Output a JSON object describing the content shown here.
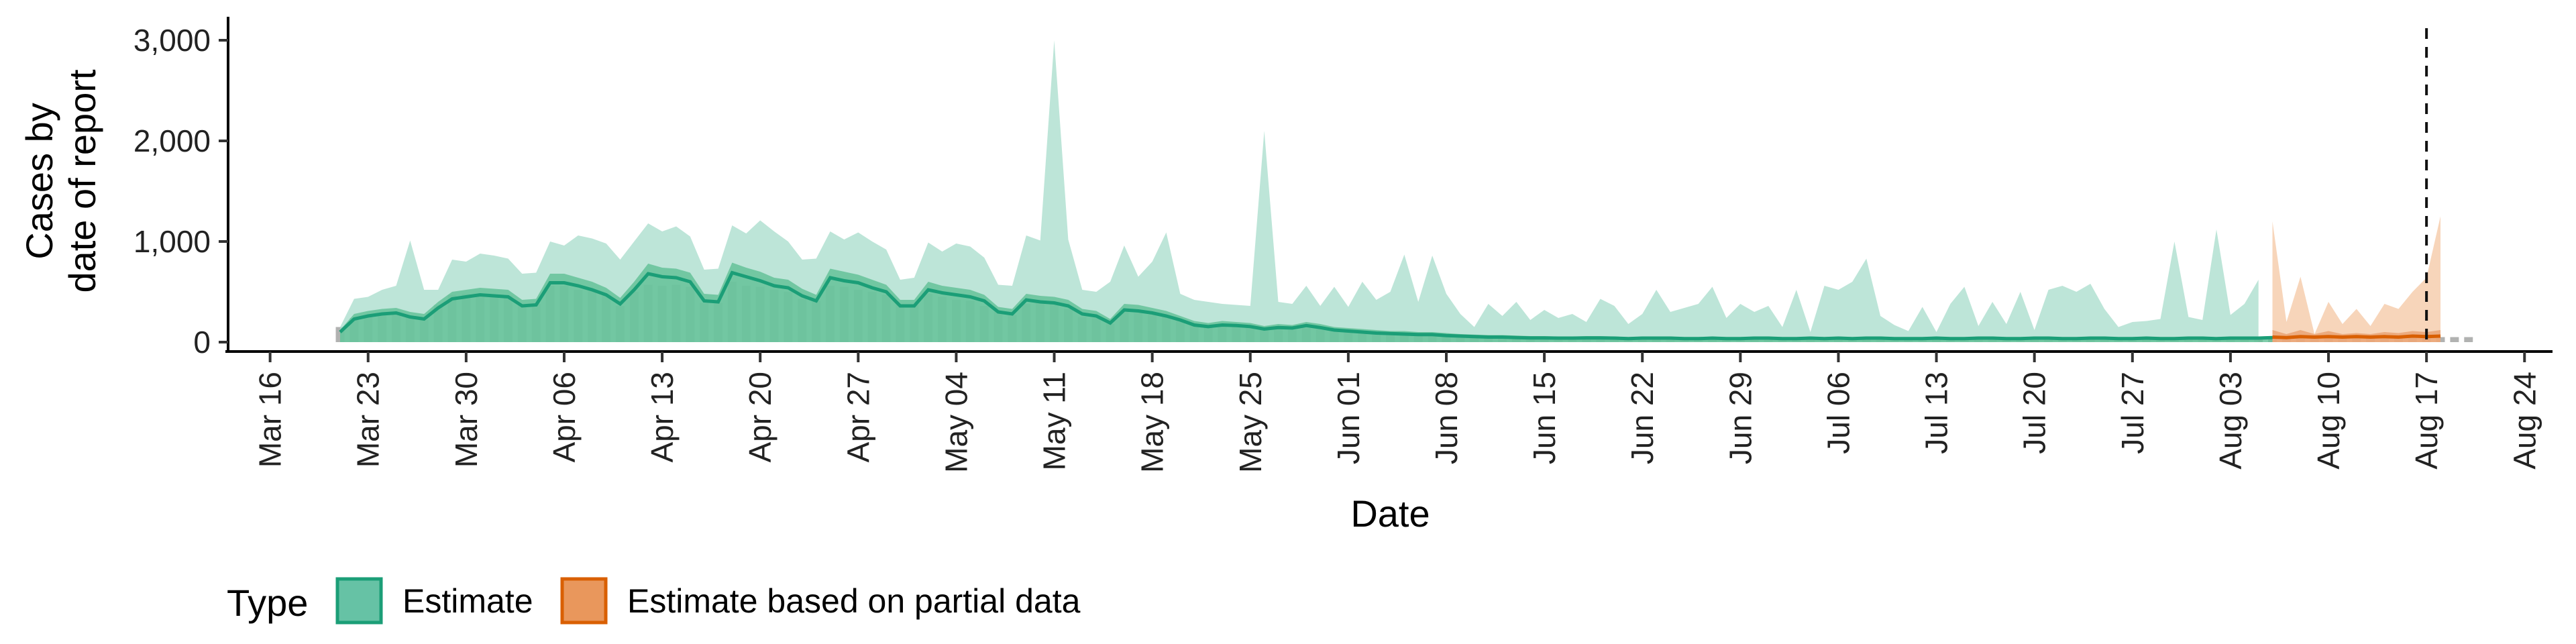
{
  "chart_data": {
    "type": "area",
    "xlabel": "Date",
    "ylabel": [
      "Cases by",
      "date of report"
    ],
    "ylim": [
      0,
      3200
    ],
    "yticks": [
      0,
      1000,
      2000,
      3000
    ],
    "ytick_labels": [
      "0",
      "1,000",
      "2,000",
      "3,000"
    ],
    "xlim": [
      "2020-03-13",
      "2020-08-26"
    ],
    "xticks": [
      "2020-03-16",
      "2020-03-23",
      "2020-03-30",
      "2020-04-06",
      "2020-04-13",
      "2020-04-20",
      "2020-04-27",
      "2020-05-04",
      "2020-05-11",
      "2020-05-18",
      "2020-05-25",
      "2020-06-01",
      "2020-06-08",
      "2020-06-15",
      "2020-06-22",
      "2020-06-29",
      "2020-07-06",
      "2020-07-13",
      "2020-07-20",
      "2020-07-27",
      "2020-08-03",
      "2020-08-10",
      "2020-08-17",
      "2020-08-24"
    ],
    "xtick_labels": [
      "Mar 16",
      "Mar 23",
      "Mar 30",
      "Apr 06",
      "Apr 13",
      "Apr 20",
      "Apr 27",
      "May 04",
      "May 11",
      "May 18",
      "May 25",
      "Jun 01",
      "Jun 08",
      "Jun 15",
      "Jun 22",
      "Jun 29",
      "Jul 06",
      "Jul 13",
      "Jul 20",
      "Jul 27",
      "Aug 03",
      "Aug 10",
      "Aug 17",
      "Aug 24"
    ],
    "vline_date": "2020-08-17",
    "grid": false,
    "legend": {
      "position": "bottom",
      "title": "Type",
      "entries": [
        {
          "label": "Estimate",
          "fill": "#66c2a5",
          "border": "#1b9e77"
        },
        {
          "label": "Estimate based on partial data",
          "fill": "#e9975c",
          "border": "#d95f02"
        }
      ]
    },
    "colors": {
      "estimate_outer": "#a7dccb",
      "estimate_inner": "#5fbf95",
      "estimate_line": "#1b9e77",
      "partial_outer": "#f4c7a3",
      "partial_inner": "#e9a070",
      "partial_line": "#d95f02",
      "bars": "#a8aaa8"
    },
    "series": [
      {
        "name": "Estimate",
        "start": "2020-03-21",
        "upper_90": [
          150,
          430,
          450,
          520,
          560,
          1010,
          520,
          520,
          820,
          800,
          880,
          860,
          830,
          680,
          690,
          1000,
          960,
          1060,
          1030,
          980,
          820,
          1000,
          1180,
          1100,
          1150,
          1050,
          720,
          730,
          1160,
          1080,
          1210,
          1100,
          1000,
          820,
          830,
          1100,
          1020,
          1090,
          1000,
          920,
          620,
          640,
          990,
          900,
          980,
          950,
          840,
          570,
          560,
          1060,
          1010,
          3000,
          1020,
          520,
          500,
          600,
          960,
          650,
          800,
          1090,
          480,
          420,
          400,
          380,
          370,
          360,
          2100,
          400,
          380,
          560,
          360,
          550,
          350,
          600,
          420,
          500,
          870,
          400,
          860,
          480,
          280,
          150,
          380,
          260,
          400,
          220,
          320,
          240,
          280,
          200,
          430,
          360,
          180,
          280,
          520,
          300,
          340,
          380,
          550,
          240,
          380,
          300,
          360,
          150,
          520,
          100,
          560,
          520,
          600,
          830,
          260,
          170,
          110,
          350,
          100,
          380,
          550,
          160,
          400,
          180,
          500,
          120,
          520,
          560,
          500,
          580,
          330,
          150,
          200,
          210,
          230,
          1000,
          250,
          220,
          1120,
          270,
          380,
          620
        ],
        "upper_50": [
          120,
          280,
          310,
          330,
          340,
          300,
          280,
          400,
          500,
          520,
          540,
          530,
          520,
          420,
          430,
          680,
          680,
          640,
          600,
          540,
          440,
          600,
          780,
          740,
          730,
          690,
          480,
          470,
          790,
          740,
          700,
          640,
          620,
          530,
          470,
          730,
          700,
          670,
          620,
          570,
          420,
          420,
          600,
          560,
          540,
          520,
          470,
          350,
          330,
          480,
          460,
          450,
          420,
          330,
          310,
          230,
          380,
          370,
          340,
          310,
          260,
          210,
          190,
          210,
          200,
          190,
          160,
          180,
          170,
          200,
          180,
          150,
          140,
          130,
          120,
          110,
          110,
          100,
          100,
          90,
          80,
          75,
          70,
          70,
          65,
          60,
          60,
          55,
          55,
          60,
          60,
          55,
          50,
          55,
          55,
          55,
          50,
          50,
          55,
          50,
          50,
          55,
          55,
          50,
          50,
          55,
          50,
          55,
          50,
          55,
          55,
          50,
          50,
          50,
          55,
          50,
          50,
          55,
          55,
          50,
          50,
          55,
          55,
          50,
          50,
          55,
          55,
          50,
          50,
          55,
          50,
          50,
          55,
          55,
          50,
          55,
          55,
          55,
          60
        ],
        "line": [
          100,
          230,
          260,
          280,
          290,
          250,
          230,
          340,
          430,
          450,
          470,
          460,
          450,
          360,
          370,
          590,
          590,
          560,
          520,
          470,
          380,
          520,
          680,
          650,
          640,
          600,
          410,
          400,
          690,
          650,
          610,
          560,
          540,
          460,
          410,
          640,
          610,
          590,
          540,
          500,
          360,
          360,
          520,
          490,
          470,
          450,
          410,
          300,
          280,
          420,
          400,
          390,
          360,
          280,
          260,
          190,
          320,
          310,
          290,
          260,
          220,
          170,
          155,
          170,
          165,
          155,
          130,
          145,
          140,
          165,
          145,
          120,
          110,
          100,
          90,
          85,
          80,
          75,
          75,
          65,
          60,
          55,
          50,
          50,
          45,
          42,
          42,
          40,
          40,
          42,
          42,
          40,
          35,
          40,
          40,
          40,
          35,
          35,
          40,
          35,
          35,
          40,
          40,
          35,
          35,
          40,
          35,
          40,
          35,
          40,
          40,
          35,
          35,
          35,
          40,
          35,
          35,
          40,
          40,
          35,
          35,
          40,
          40,
          35,
          35,
          40,
          40,
          35,
          35,
          40,
          35,
          35,
          40,
          40,
          35,
          40,
          40,
          40,
          45
        ]
      },
      {
        "name": "Estimate based on partial data",
        "start": "2020-08-06",
        "upper_90": [
          1200,
          200,
          650,
          80,
          400,
          180,
          330,
          160,
          380,
          330,
          500,
          640,
          1250
        ],
        "upper_50": [
          120,
          80,
          120,
          80,
          110,
          80,
          90,
          80,
          100,
          90,
          110,
          100,
          120
        ],
        "line": [
          50,
          45,
          55,
          50,
          55,
          50,
          55,
          50,
          55,
          50,
          60,
          55,
          60
        ]
      }
    ],
    "bars": {
      "start": "2020-03-21",
      "values": [
        150,
        240,
        260,
        290,
        300,
        260,
        220,
        370,
        470,
        480,
        480,
        470,
        460,
        360,
        380,
        560,
        560,
        520,
        510,
        470,
        360,
        500,
        570,
        560,
        570,
        550,
        390,
        390,
        600,
        560,
        550,
        520,
        500,
        430,
        410,
        560,
        550,
        520,
        500,
        470,
        380,
        370,
        480,
        450,
        420,
        410,
        360,
        300,
        270,
        380,
        390,
        380,
        330,
        250,
        240,
        180,
        300,
        290,
        270,
        250,
        210,
        160,
        150,
        170,
        160,
        150,
        120,
        130,
        120,
        140,
        130,
        110,
        100,
        90,
        90,
        80,
        80,
        80,
        80,
        70,
        60,
        60,
        60,
        60,
        50,
        50,
        50,
        50,
        50,
        50,
        50,
        50,
        40,
        50,
        50,
        50,
        40,
        40,
        50,
        40,
        40,
        50,
        50,
        40,
        40,
        50,
        40,
        50,
        40,
        50,
        50,
        40,
        40,
        40,
        50,
        40,
        40,
        50,
        50,
        40,
        40,
        50,
        50,
        40,
        40,
        50,
        50,
        40,
        40,
        50,
        40,
        40,
        50,
        50,
        40,
        40,
        50,
        50,
        50,
        50,
        50,
        50,
        50,
        50,
        50,
        50,
        50,
        50,
        50,
        50,
        50,
        50,
        50
      ]
    }
  }
}
